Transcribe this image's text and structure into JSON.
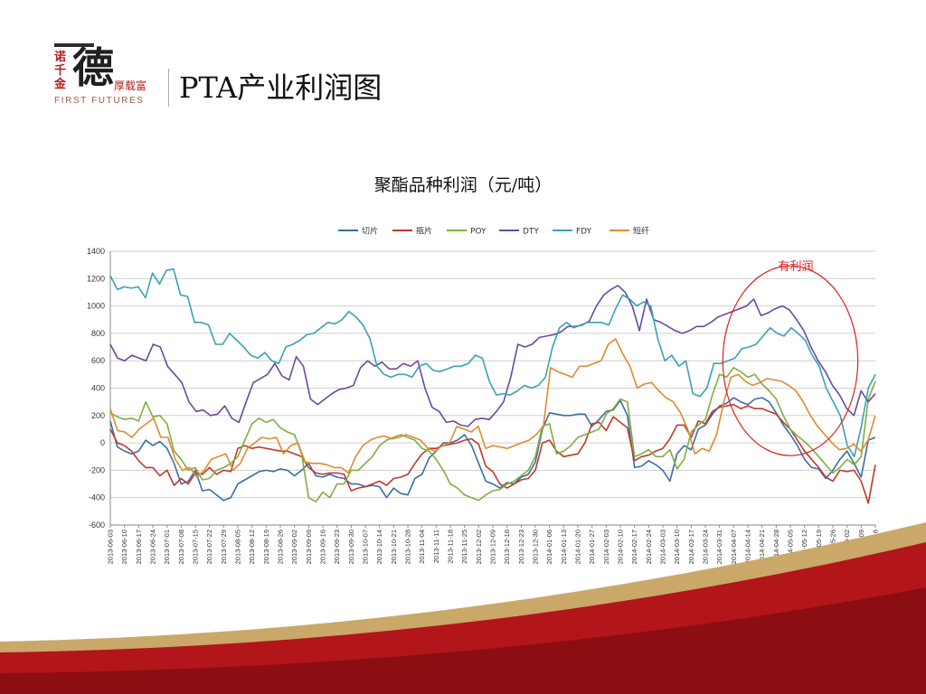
{
  "logo": {
    "vertical_text": "诺千金",
    "big_char": "德",
    "small_text": "厚载富",
    "english": "FIRST FUTURES"
  },
  "page_title": "PTA产业利润图",
  "chart_data": {
    "type": "line",
    "title": "聚酯品种利润（元/吨）",
    "xlabel": "",
    "ylabel": "",
    "ylim": [
      -600,
      1400
    ],
    "yticks": [
      -600,
      -400,
      -200,
      0,
      200,
      400,
      600,
      800,
      1000,
      1200,
      1400
    ],
    "grid": "horizontal",
    "legend_position": "top",
    "annotation": {
      "text": "有利润",
      "color": "#e02020",
      "x_range": [
        "2014-04-07",
        "2014-06-02"
      ]
    },
    "x_tick_labels": [
      "2013-06-03",
      "2013-06-10",
      "2013-06-17",
      "2013-06-24",
      "2013-07-01",
      "2013-07-08",
      "2013-07-15",
      "2013-07-22",
      "2013-07-29",
      "2013-08-05",
      "2013-08-12",
      "2013-08-19",
      "2013-08-26",
      "2013-09-02",
      "2013-09-09",
      "2013-09-16",
      "2013-09-23",
      "2013-09-30",
      "2013-10-07",
      "2013-10-14",
      "2013-10-21",
      "2013-10-28",
      "2013-11-04",
      "2013-11-11",
      "2013-11-18",
      "2013-11-25",
      "2013-12-02",
      "2013-12-09",
      "2013-12-16",
      "2013-12-23",
      "2013-12-30",
      "2014-01-06",
      "2014-01-13",
      "2014-01-20",
      "2014-01-27",
      "2014-02-03",
      "2014-02-10",
      "2014-02-17",
      "2014-02-24",
      "2014-03-03",
      "2014-03-10",
      "2014-03-17",
      "2014-03-24",
      "2014-03-31",
      "2014-04-07",
      "2014-04-14",
      "2014-04-21",
      "2014-04-28",
      "2014-05-05",
      "2014-05-12",
      "2014-05-19",
      "2014-05-26",
      "2014-06-02",
      "2014-06-09",
      "2014-06-16"
    ],
    "series": [
      {
        "name": "切片",
        "color": "#3a6ea8",
        "values": [
          160,
          -30,
          -60,
          -80,
          -60,
          20,
          -20,
          10,
          -40,
          -150,
          -300,
          -280,
          -200,
          -350,
          -340,
          -380,
          -420,
          -400,
          -300,
          -270,
          -240,
          -210,
          -200,
          -210,
          -190,
          -200,
          -240,
          -200,
          -150,
          -240,
          -250,
          -230,
          -250,
          -260,
          -300,
          -300,
          -320,
          -310,
          -320,
          -400,
          -330,
          -370,
          -380,
          -260,
          -230,
          -110,
          -60,
          0,
          0,
          20,
          60,
          -20,
          -150,
          -280,
          -300,
          -330,
          -290,
          -300,
          -250,
          -230,
          -140,
          100,
          220,
          210,
          200,
          200,
          210,
          210,
          120,
          170,
          230,
          240,
          310,
          200,
          -180,
          -170,
          -130,
          -160,
          -200,
          -280,
          -80,
          -20,
          -50,
          100,
          130,
          210,
          270,
          290,
          330,
          300,
          280,
          320,
          330,
          300,
          220,
          130,
          60,
          -20,
          -120,
          -180,
          -190,
          -260,
          -200,
          -120,
          -60,
          -150,
          -250,
          20,
          40
        ]
      },
      {
        "name": "瓶片",
        "color": "#c0392b",
        "values": [
          100,
          0,
          -20,
          -60,
          -130,
          -180,
          -180,
          -240,
          -200,
          -310,
          -260,
          -300,
          -220,
          -230,
          -180,
          -230,
          -200,
          -210,
          -40,
          -20,
          -40,
          -30,
          -40,
          -50,
          -60,
          -60,
          -80,
          -100,
          -180,
          -220,
          -230,
          -220,
          -220,
          -230,
          -350,
          -330,
          -320,
          -300,
          -280,
          -310,
          -260,
          -250,
          -230,
          -150,
          -80,
          -40,
          -40,
          -20,
          -10,
          0,
          20,
          30,
          -10,
          -170,
          -210,
          -300,
          -330,
          -300,
          -270,
          -260,
          -200,
          0,
          20,
          -60,
          -100,
          -90,
          -80,
          0,
          140,
          150,
          90,
          190,
          150,
          110,
          -130,
          -100,
          -90,
          -60,
          -40,
          30,
          130,
          130,
          40,
          160,
          140,
          230,
          260,
          270,
          280,
          250,
          270,
          250,
          250,
          230,
          210,
          150,
          100,
          20,
          -60,
          -120,
          -180,
          -250,
          -280,
          -200,
          -210,
          -200,
          -280,
          -440,
          -160
        ]
      },
      {
        "name": "POY",
        "color": "#7fae3e",
        "values": [
          220,
          190,
          170,
          180,
          160,
          300,
          190,
          200,
          140,
          -60,
          -120,
          -200,
          -180,
          -270,
          -260,
          -200,
          -180,
          -150,
          -100,
          20,
          140,
          180,
          150,
          170,
          110,
          80,
          60,
          -80,
          -400,
          -430,
          -360,
          -400,
          -300,
          -300,
          -200,
          -200,
          -150,
          -100,
          -20,
          20,
          40,
          60,
          40,
          20,
          -40,
          -60,
          -120,
          -200,
          -300,
          -330,
          -380,
          -400,
          -420,
          -380,
          -350,
          -340,
          -300,
          -280,
          -240,
          -200,
          -100,
          120,
          140,
          -80,
          -60,
          -20,
          40,
          60,
          80,
          100,
          210,
          250,
          320,
          300,
          -100,
          -80,
          -50,
          -100,
          -100,
          -50,
          -190,
          -120,
          80,
          130,
          170,
          350,
          500,
          480,
          550,
          520,
          480,
          500,
          430,
          380,
          320,
          200,
          100,
          50,
          10,
          -40,
          -100,
          -160,
          -220,
          -180,
          -120,
          -160,
          -100,
          320,
          450
        ]
      },
      {
        "name": "DTY",
        "color": "#6a4a9c",
        "values": [
          720,
          620,
          600,
          640,
          620,
          600,
          720,
          700,
          560,
          500,
          440,
          300,
          230,
          240,
          200,
          210,
          270,
          180,
          150,
          300,
          440,
          470,
          500,
          580,
          490,
          460,
          630,
          560,
          320,
          280,
          320,
          360,
          390,
          400,
          420,
          550,
          600,
          560,
          590,
          540,
          540,
          580,
          560,
          600,
          400,
          260,
          230,
          150,
          160,
          130,
          120,
          170,
          180,
          170,
          230,
          300,
          480,
          720,
          700,
          720,
          770,
          780,
          790,
          810,
          850,
          850,
          860,
          890,
          1000,
          1080,
          1120,
          1150,
          1100,
          1000,
          820,
          1050,
          900,
          880,
          850,
          820,
          800,
          820,
          850,
          850,
          880,
          920,
          940,
          960,
          980,
          1000,
          1050,
          930,
          950,
          980,
          1000,
          970,
          900,
          820,
          700,
          600,
          520,
          420,
          350,
          250,
          200,
          380,
          300,
          360
        ]
      },
      {
        "name": "FDY",
        "color": "#3aa0b8",
        "values": [
          1220,
          1120,
          1140,
          1130,
          1140,
          1060,
          1240,
          1160,
          1260,
          1270,
          1080,
          1070,
          880,
          880,
          860,
          720,
          720,
          800,
          750,
          700,
          640,
          620,
          660,
          600,
          580,
          700,
          720,
          750,
          790,
          800,
          840,
          880,
          870,
          900,
          960,
          920,
          860,
          760,
          560,
          500,
          480,
          500,
          500,
          480,
          560,
          580,
          530,
          520,
          540,
          560,
          560,
          580,
          640,
          620,
          450,
          350,
          360,
          350,
          380,
          420,
          400,
          420,
          480,
          700,
          840,
          880,
          840,
          860,
          880,
          880,
          880,
          860,
          980,
          1080,
          1050,
          1000,
          1030,
          1000,
          760,
          600,
          640,
          560,
          600,
          360,
          340,
          400,
          580,
          580,
          600,
          620,
          690,
          700,
          720,
          780,
          840,
          800,
          780,
          840,
          800,
          750,
          640,
          560,
          400,
          300,
          200,
          -20,
          -100,
          120,
          400,
          500
        ]
      },
      {
        "name": "短纤",
        "color": "#e08a2e",
        "values": [
          250,
          90,
          80,
          40,
          100,
          140,
          180,
          40,
          40,
          -120,
          -200,
          -180,
          -250,
          -200,
          -120,
          -100,
          -80,
          -200,
          -150,
          -40,
          0,
          40,
          30,
          40,
          -80,
          -20,
          0,
          -140,
          -150,
          -150,
          -160,
          -180,
          -180,
          -220,
          -100,
          -20,
          20,
          40,
          50,
          30,
          40,
          60,
          40,
          20,
          -40,
          -60,
          -20,
          0,
          120,
          100,
          80,
          120,
          -40,
          -20,
          -30,
          -40,
          -20,
          0,
          20,
          60,
          120,
          550,
          520,
          500,
          480,
          560,
          560,
          580,
          600,
          720,
          760,
          650,
          560,
          400,
          430,
          440,
          380,
          330,
          300,
          220,
          100,
          -80,
          -40,
          -60,
          60,
          300,
          480,
          500,
          450,
          420,
          440,
          470,
          460,
          450,
          420,
          380,
          300,
          200,
          120,
          60,
          0,
          -50,
          -40,
          -10,
          -60,
          20,
          200
        ]
      }
    ]
  }
}
